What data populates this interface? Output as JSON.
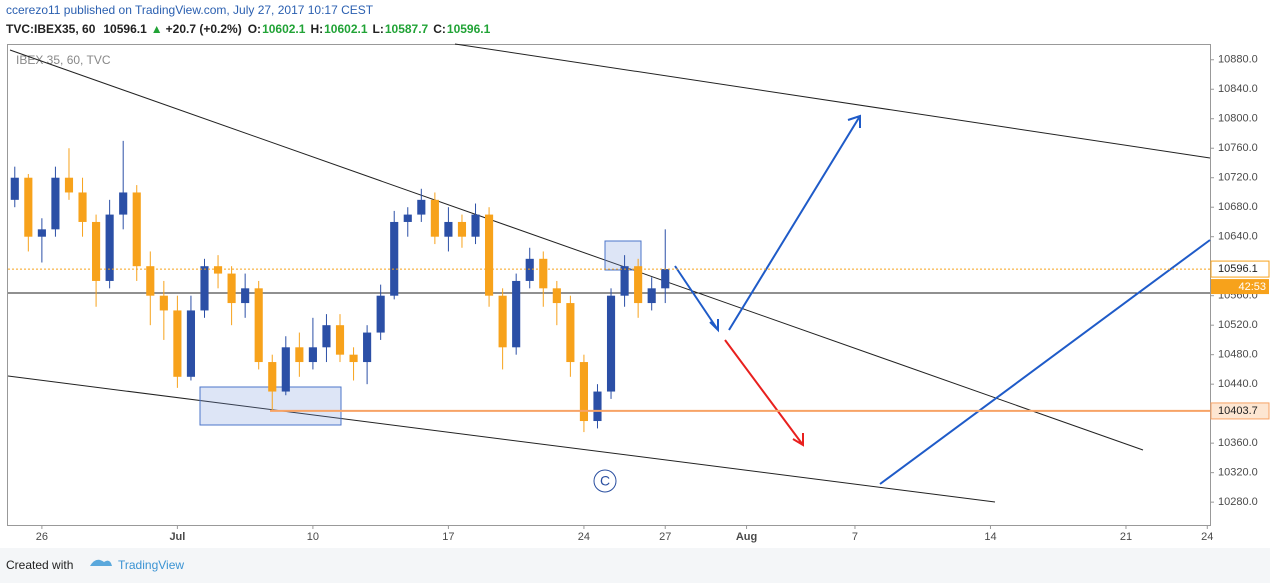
{
  "header": {
    "publisher": "ccerezo11 published on TradingView.com, July 27, 2017 10:17 CEST",
    "symbol": "TVC:IBEX35, 60",
    "last": "10596.1",
    "arrow": "▲",
    "change": "+20.7 (+0.2%)",
    "ohlc": [
      {
        "label": "O:",
        "value": "10602.1"
      },
      {
        "label": "H:",
        "value": "10602.1"
      },
      {
        "label": "L:",
        "value": "10587.7"
      },
      {
        "label": "C:",
        "value": "10596.1"
      }
    ]
  },
  "watermark": "IBEX 35, 60, TVC",
  "annotation": "C",
  "footer": {
    "created": "Created with",
    "brand": "TradingView"
  },
  "chart_data": {
    "type": "candlestick",
    "up_color": "#2b4fa6",
    "down_color": "#f7a21b",
    "x": [
      -1,
      -0.5,
      0,
      0.5,
      1,
      1.5,
      2,
      2.5,
      3,
      3.5,
      4,
      4.5,
      5,
      5.5,
      6,
      6.5,
      7,
      7.5,
      8,
      8.5,
      9,
      9.5,
      10,
      10.5,
      11,
      11.5,
      12,
      12.5,
      13,
      13.5,
      14,
      14.5,
      15,
      15.5,
      16,
      16.5,
      17,
      17.5,
      18,
      18.5,
      19,
      19.5,
      20,
      20.5,
      21,
      21.5,
      22,
      22.5,
      23
    ],
    "open": [
      10690,
      10720,
      10640,
      10650,
      10720,
      10700,
      10660,
      10580,
      10670,
      10700,
      10600,
      10560,
      10540,
      10450,
      10540,
      10600,
      10590,
      10550,
      10570,
      10470,
      10430,
      10490,
      10470,
      10490,
      10520,
      10480,
      10470,
      10510,
      10560,
      10660,
      10670,
      10690,
      10640,
      10660,
      10640,
      10670,
      10560,
      10490,
      10580,
      10610,
      10570,
      10550,
      10470,
      10390,
      10430,
      10560,
      10600,
      10550,
      10570
    ],
    "high": [
      10735,
      10725,
      10665,
      10735,
      10760,
      10720,
      10670,
      10690,
      10770,
      10710,
      10620,
      10580,
      10560,
      10560,
      10610,
      10615,
      10600,
      10590,
      10580,
      10480,
      10505,
      10510,
      10530,
      10535,
      10535,
      10490,
      10520,
      10575,
      10675,
      10680,
      10705,
      10700,
      10680,
      10670,
      10685,
      10680,
      10570,
      10590,
      10625,
      10620,
      10580,
      10560,
      10480,
      10440,
      10570,
      10615,
      10610,
      10585,
      10650
    ],
    "low": [
      10680,
      10620,
      10605,
      10640,
      10690,
      10640,
      10545,
      10570,
      10650,
      10580,
      10520,
      10500,
      10435,
      10445,
      10530,
      10570,
      10520,
      10530,
      10460,
      10405,
      10425,
      10450,
      10460,
      10470,
      10470,
      10445,
      10440,
      10500,
      10555,
      10640,
      10660,
      10630,
      10620,
      10625,
      10630,
      10545,
      10460,
      10480,
      10570,
      10545,
      10520,
      10450,
      10375,
      10380,
      10420,
      10545,
      10530,
      10540,
      10550
    ],
    "close": [
      10720,
      10640,
      10650,
      10720,
      10700,
      10660,
      10580,
      10670,
      10700,
      10600,
      10560,
      10540,
      10450,
      10540,
      10600,
      10590,
      10550,
      10570,
      10470,
      10430,
      10490,
      10470,
      10490,
      10520,
      10480,
      10470,
      10510,
      10560,
      10660,
      10670,
      10690,
      10640,
      10660,
      10640,
      10670,
      10560,
      10490,
      10580,
      10610,
      10570,
      10550,
      10470,
      10390,
      10430,
      10560,
      10600,
      10550,
      10570,
      10596.1
    ],
    "xlim": [
      -1.25,
      43.1
    ],
    "xticks": [
      {
        "value": 0,
        "label": "26"
      },
      {
        "value": 5,
        "label": "Jul"
      },
      {
        "value": 10,
        "label": "10"
      },
      {
        "value": 15,
        "label": "17"
      },
      {
        "value": 20,
        "label": "24"
      },
      {
        "value": 23,
        "label": "27"
      },
      {
        "value": 26,
        "label": "Aug"
      },
      {
        "value": 30,
        "label": "7"
      },
      {
        "value": 35,
        "label": "14"
      },
      {
        "value": 40,
        "label": "21"
      },
      {
        "value": 43,
        "label": "24"
      }
    ],
    "ylim": [
      10249,
      10900
    ],
    "yticks": [
      {
        "value": 10280,
        "label": "10280.0"
      },
      {
        "value": 10320,
        "label": "10320.0"
      },
      {
        "value": 10360,
        "label": "10360.0"
      },
      {
        "value": 10400,
        "label": "10400.0"
      },
      {
        "value": 10440,
        "label": "10440.0"
      },
      {
        "value": 10480,
        "label": "10480.0"
      },
      {
        "value": 10520,
        "label": "10520.0"
      },
      {
        "value": 10560,
        "label": "10560.0"
      },
      {
        "value": 10600,
        "label": "10600.0"
      },
      {
        "value": 10640,
        "label": "10640.0"
      },
      {
        "value": 10680,
        "label": "10680.0"
      },
      {
        "value": 10720,
        "label": "10720.0"
      },
      {
        "value": 10760,
        "label": "10760.0"
      },
      {
        "value": 10800,
        "label": "10800.0"
      },
      {
        "value": 10840,
        "label": "10840.0"
      },
      {
        "value": 10880,
        "label": "10880.0"
      }
    ],
    "last_price": {
      "value": 10596.1,
      "label": "10596.1",
      "countdown": "42:53"
    },
    "support": {
      "value": 10403.7,
      "label": "10403.7"
    }
  }
}
